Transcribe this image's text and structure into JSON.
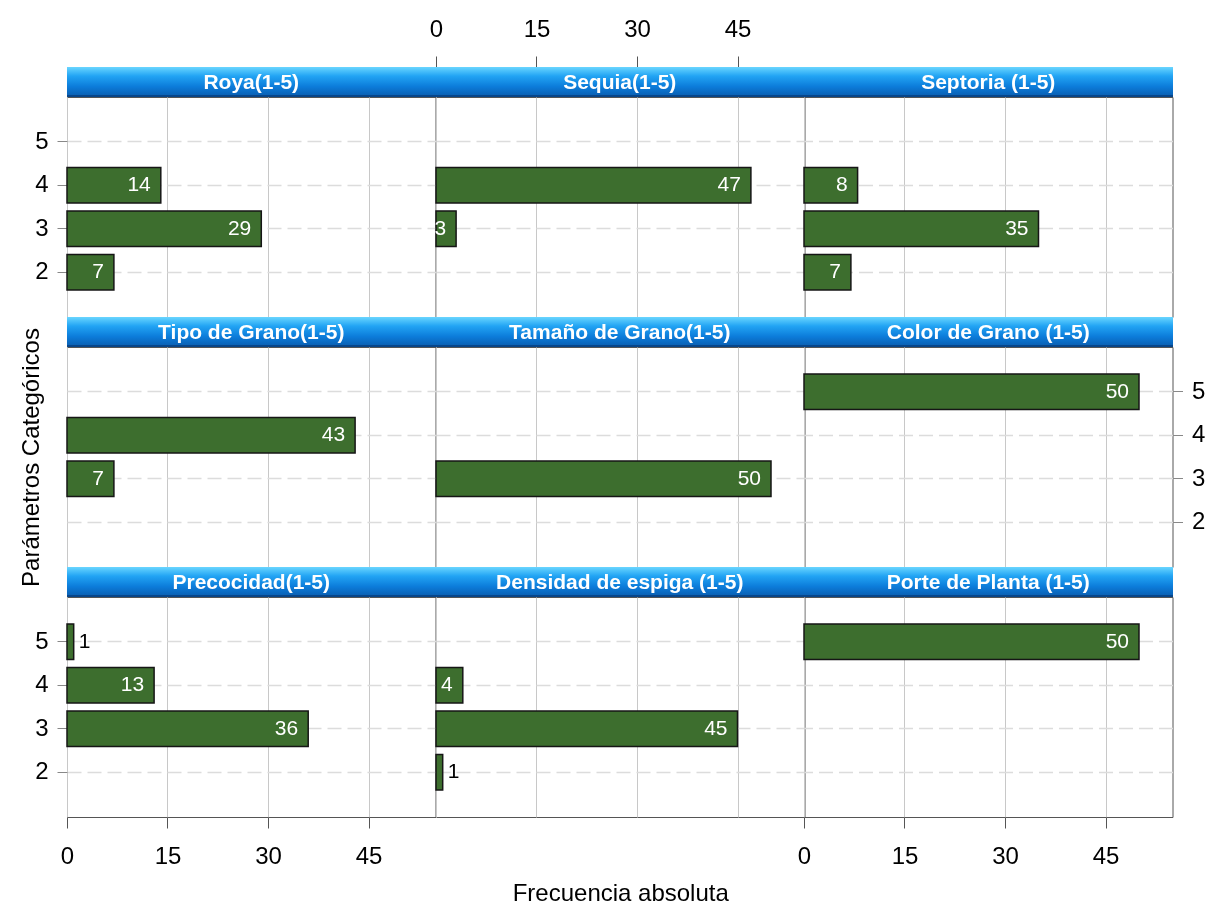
{
  "chart_data": [
    {
      "type": "bar",
      "orientation": "horizontal",
      "title": "Roya(1-5)",
      "categories": [
        "5",
        "4",
        "3",
        "2"
      ],
      "values": [
        null,
        14,
        29,
        7
      ],
      "color": "#3d6e2e",
      "xlim": [
        0,
        55
      ],
      "xticks": [
        0,
        15,
        30,
        45
      ],
      "grid": true,
      "data_labels": true,
      "tick_labels": "y"
    },
    {
      "type": "bar",
      "orientation": "horizontal",
      "title": "Sequia(1-5)",
      "categories": [
        "5",
        "4",
        "3",
        "2"
      ],
      "values": [
        null,
        47,
        3,
        null
      ],
      "color": "#3d6e2e",
      "xlim": [
        0,
        55
      ],
      "xticks": [
        0,
        15,
        30,
        45
      ],
      "grid": true,
      "data_labels": true,
      "tick_labels": "x"
    },
    {
      "type": "bar",
      "orientation": "horizontal",
      "title": "Septoria (1-5)",
      "categories": [
        "5",
        "4",
        "3",
        "2"
      ],
      "values": [
        null,
        8,
        35,
        7
      ],
      "color": "#3d6e2e",
      "xlim": [
        0,
        55
      ],
      "xticks": [
        0,
        15,
        30,
        45
      ],
      "grid": true,
      "data_labels": true,
      "tick_labels": false
    },
    {
      "type": "bar",
      "orientation": "horizontal",
      "title": "Tipo de Grano(1-5)",
      "ylabel": "Parámetros Categóricos",
      "categories": [
        "5",
        "4",
        "3",
        "2"
      ],
      "values": [
        null,
        43,
        7,
        null
      ],
      "color": "#3d6e2e",
      "xlim": [
        0,
        55
      ],
      "xticks": [
        0,
        15,
        30,
        45
      ],
      "grid": true,
      "data_labels": true,
      "tick_labels": false
    },
    {
      "type": "bar",
      "orientation": "horizontal",
      "title": "Tamaño de Grano(1-5)",
      "categories": [
        "5",
        "4",
        "3",
        "2"
      ],
      "values": [
        null,
        null,
        50,
        null
      ],
      "color": "#3d6e2e",
      "xlim": [
        0,
        55
      ],
      "xticks": [
        0,
        15,
        30,
        45
      ],
      "grid": true,
      "data_labels": true,
      "tick_labels": false
    },
    {
      "type": "bar",
      "orientation": "horizontal",
      "title": "Color de Grano (1-5)",
      "categories": [
        "5",
        "4",
        "3",
        "2"
      ],
      "values": [
        50,
        null,
        null,
        null
      ],
      "color": "#3d6e2e",
      "xlim": [
        0,
        55
      ],
      "xticks": [
        0,
        15,
        30,
        45
      ],
      "grid": true,
      "data_labels": true,
      "tick_labels": "y"
    },
    {
      "type": "bar",
      "orientation": "horizontal",
      "title": "Precocidad(1-5)",
      "categories": [
        "5",
        "4",
        "3",
        "2"
      ],
      "values": [
        1,
        13,
        36,
        null
      ],
      "color": "#3d6e2e",
      "xlim": [
        0,
        55
      ],
      "xticks": [
        0,
        15,
        30,
        45
      ],
      "grid": true,
      "data_labels": true
    },
    {
      "type": "bar",
      "orientation": "horizontal",
      "title": "Densidad de espiga (1-5)",
      "xlabel": "Frecuencia absoluta",
      "categories": [
        "5",
        "4",
        "3",
        "2"
      ],
      "values": [
        null,
        4,
        45,
        1
      ],
      "color": "#3d6e2e",
      "xlim": [
        0,
        55
      ],
      "xticks": [
        0,
        15,
        30,
        45
      ],
      "grid": true,
      "data_labels": true,
      "tick_labels": false
    },
    {
      "type": "bar",
      "orientation": "horizontal",
      "title": "Porte de Planta (1-5)",
      "categories": [
        "5",
        "4",
        "3",
        "2"
      ],
      "values": [
        50,
        null,
        null,
        null
      ],
      "color": "#3d6e2e",
      "xlim": [
        0,
        55
      ],
      "xticks": [
        0,
        15,
        30,
        45
      ],
      "grid": true,
      "data_labels": true,
      "tick_labels": "x"
    }
  ]
}
